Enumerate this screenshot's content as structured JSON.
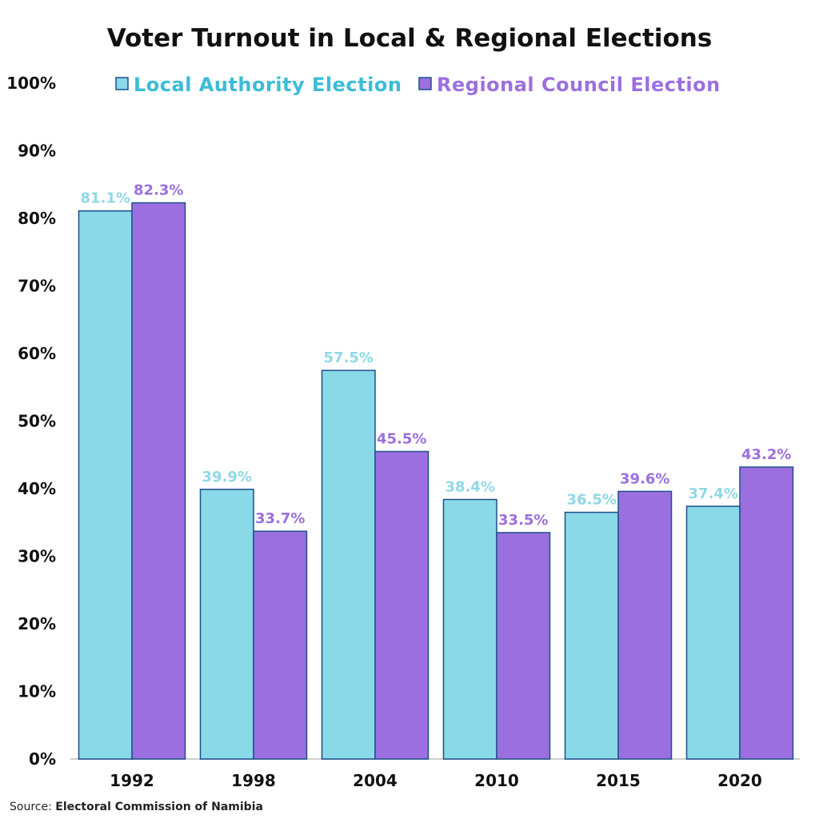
{
  "chart_data": {
    "type": "bar",
    "title": "Voter Turnout in Local & Regional Elections",
    "categories": [
      "1992",
      "1998",
      "2004",
      "2010",
      "2015",
      "2020"
    ],
    "series": [
      {
        "name": "Local Authority Election",
        "values": [
          81.1,
          39.9,
          57.5,
          38.4,
          36.5,
          37.4
        ],
        "color": "#89d9e8",
        "label_color": "#8fd8e6",
        "legend_color": "#3bbcd6"
      },
      {
        "name": "Regional Council Election",
        "values": [
          82.3,
          33.7,
          45.5,
          33.5,
          39.6,
          43.2
        ],
        "color": "#9b6fdf",
        "label_color": "#9b6fdf",
        "legend_color": "#9b6fdf"
      }
    ],
    "data_labels": [
      [
        "81.1%",
        "39.9%",
        "57.5%",
        "38.4%",
        "36.5%",
        "37.4%"
      ],
      [
        "82.3%",
        "33.7%",
        "45.5%",
        "33.5%",
        "39.6%",
        "43.2%"
      ]
    ],
    "ylim": [
      0,
      100
    ],
    "yticks": [
      "0%",
      "10%",
      "20%",
      "30%",
      "40%",
      "50%",
      "60%",
      "70%",
      "80%",
      "90%",
      "100%"
    ],
    "grid": false,
    "legend": "top",
    "bar_outline": "#1f4e8c"
  },
  "source": {
    "prefix": "Source: ",
    "name": "Electoral Commission of Namibia"
  }
}
